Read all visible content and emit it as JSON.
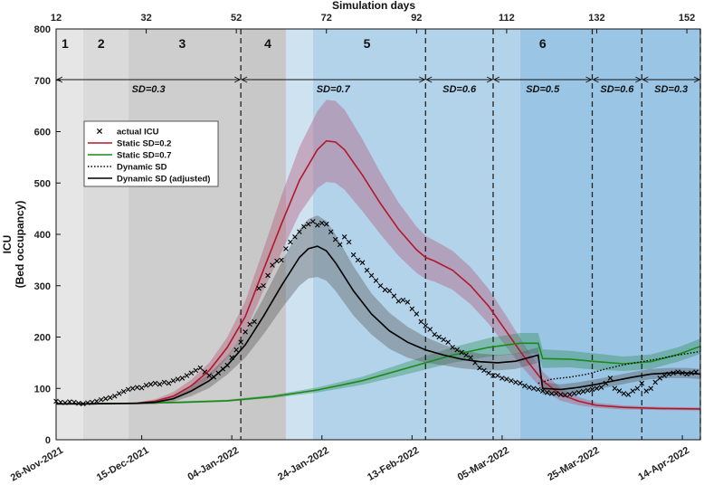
{
  "chart_data": {
    "type": "line",
    "title": "",
    "top_axis_label": "Simulation days",
    "top_ticks": [
      "12",
      "32",
      "52",
      "72",
      "92",
      "112",
      "132",
      "152"
    ],
    "top_tick_days": [
      12,
      32,
      52,
      72,
      92,
      112,
      132,
      152
    ],
    "ylabel_line1": "ICU",
    "ylabel_line2": "(Bed occupancy)",
    "ylim": [
      0,
      800
    ],
    "yticks": [
      "0",
      "100",
      "200",
      "300",
      "400",
      "500",
      "600",
      "700",
      "800"
    ],
    "xlim_days": [
      12,
      155
    ],
    "date_ticks": [
      {
        "label": "26-Nov-2021",
        "day": 12
      },
      {
        "label": "15-Dec-2021",
        "day": 31
      },
      {
        "label": "04-Jan-2022",
        "day": 51
      },
      {
        "label": "24-Jan-2022",
        "day": 71
      },
      {
        "label": "13-Feb-2022",
        "day": 91
      },
      {
        "label": "05-Mar-2022",
        "day": 111
      },
      {
        "label": "25-Mar-2022",
        "day": 131
      },
      {
        "label": "14-Apr-2022",
        "day": 151
      }
    ],
    "phase_regions": [
      {
        "start": 12,
        "end": 18,
        "color": "#e6e6e6"
      },
      {
        "start": 18,
        "end": 28,
        "color": "#dadada"
      },
      {
        "start": 28,
        "end": 53,
        "color": "#cecece"
      },
      {
        "start": 53,
        "end": 63,
        "color": "#c8c8c8"
      },
      {
        "start": 63,
        "end": 69,
        "color": "#cfe2f0"
      },
      {
        "start": 69,
        "end": 115,
        "color": "#b3d3ea"
      },
      {
        "start": 115,
        "end": 155,
        "color": "#9ac5e4"
      }
    ],
    "phases": [
      {
        "label": "1",
        "day": 14
      },
      {
        "label": "2",
        "day": 22
      },
      {
        "label": "3",
        "day": 40
      },
      {
        "label": "4",
        "day": 59
      },
      {
        "label": "5",
        "day": 81
      },
      {
        "label": "6",
        "day": 120
      }
    ],
    "dashed_lines": [
      53,
      94,
      109,
      131,
      142,
      155
    ],
    "sd_intervals": [
      {
        "label": "SD=0.3",
        "start": 12,
        "end": 53
      },
      {
        "label": "SD=0.7",
        "start": 53,
        "end": 94
      },
      {
        "label": "SD=0.6",
        "start": 94,
        "end": 109
      },
      {
        "label": "SD=0.5",
        "start": 109,
        "end": 131
      },
      {
        "label": "SD=0.6",
        "start": 131,
        "end": 142
      },
      {
        "label": "SD=0.3",
        "start": 142,
        "end": 155
      }
    ],
    "legend": [
      {
        "label": "actual ICU",
        "style": "marker",
        "color": "#000000"
      },
      {
        "label": "Static SD=0.2",
        "style": "solid",
        "color": "#b2182b"
      },
      {
        "label": "Static SD=0.7",
        "style": "solid",
        "color": "#1a8a1a"
      },
      {
        "label": "Dynamic SD",
        "style": "dotted",
        "color": "#000000"
      },
      {
        "label": "Dynamic SD (adjusted)",
        "style": "solid",
        "color": "#000000"
      }
    ],
    "series": [
      {
        "name": "Static SD=0.2",
        "color": "#b2182b",
        "band_color": "#b05070",
        "x": [
          12,
          20,
          30,
          34,
          38,
          42,
          46,
          50,
          54,
          58,
          62,
          66,
          70,
          72,
          74,
          76,
          80,
          84,
          88,
          92,
          94,
          96,
          100,
          104,
          108,
          112,
          116,
          120,
          124,
          128,
          132,
          138,
          146,
          155
        ],
        "y": [
          70,
          70,
          71,
          75,
          85,
          105,
          135,
          180,
          240,
          330,
          420,
          505,
          565,
          582,
          580,
          565,
          515,
          460,
          410,
          370,
          355,
          348,
          330,
          300,
          260,
          210,
          160,
          115,
          88,
          75,
          67,
          63,
          61,
          60
        ],
        "band": [
          0,
          0,
          2,
          4,
          8,
          12,
          15,
          20,
          30,
          40,
          55,
          65,
          75,
          80,
          80,
          78,
          70,
          60,
          52,
          45,
          42,
          40,
          38,
          36,
          34,
          30,
          24,
          18,
          12,
          8,
          5,
          4,
          3,
          3
        ]
      },
      {
        "name": "Static SD=0.7",
        "color": "#1a8a1a",
        "band_color": "#2e8b57",
        "x": [
          12,
          30,
          40,
          50,
          60,
          70,
          80,
          90,
          100,
          108,
          115,
          119,
          120,
          126,
          132,
          138,
          144,
          150,
          155
        ],
        "y": [
          70,
          71,
          73,
          76,
          84,
          97,
          115,
          140,
          165,
          180,
          188,
          188,
          158,
          157,
          152,
          148,
          152,
          166,
          182
        ],
        "band": [
          1,
          1,
          2,
          2,
          3,
          5,
          8,
          12,
          15,
          18,
          20,
          20,
          18,
          16,
          16,
          14,
          14,
          14,
          15
        ]
      },
      {
        "name": "Dynamic SD",
        "color": "#000000",
        "dotted": true,
        "x": [
          119,
          122,
          126,
          130,
          134,
          138,
          142,
          146,
          150,
          155
        ],
        "y": [
          110,
          118,
          122,
          128,
          138,
          146,
          152,
          158,
          165,
          172
        ],
        "band": []
      },
      {
        "name": "Dynamic SD (adjusted)",
        "color": "#000000",
        "band_color": "#555555",
        "x": [
          12,
          20,
          30,
          34,
          38,
          42,
          46,
          50,
          54,
          58,
          62,
          66,
          68,
          70,
          72,
          74,
          78,
          82,
          86,
          90,
          94,
          98,
          102,
          106,
          110,
          114,
          119,
          120,
          124,
          128,
          132,
          136,
          140,
          144,
          148,
          152,
          155
        ],
        "y": [
          70,
          70,
          71,
          73,
          80,
          95,
          115,
          145,
          185,
          240,
          300,
          355,
          372,
          377,
          368,
          345,
          290,
          245,
          212,
          190,
          175,
          165,
          157,
          152,
          150,
          153,
          165,
          100,
          98,
          102,
          108,
          115,
          122,
          128,
          130,
          130,
          128
        ],
        "band": [
          0,
          0,
          2,
          4,
          6,
          10,
          14,
          18,
          25,
          35,
          45,
          55,
          58,
          60,
          58,
          55,
          48,
          40,
          35,
          30,
          25,
          20,
          18,
          16,
          15,
          15,
          15,
          12,
          10,
          10,
          10,
          10,
          10,
          10,
          10,
          10,
          10
        ]
      }
    ],
    "actual_icu": {
      "x": [
        12,
        13,
        14,
        15,
        16,
        17,
        18,
        19,
        20,
        21,
        22,
        23,
        24,
        25,
        26,
        27,
        28,
        29,
        30,
        31,
        32,
        33,
        34,
        35,
        36,
        37,
        38,
        39,
        40,
        41,
        42,
        43,
        44,
        45,
        46,
        47,
        48,
        49,
        50,
        51,
        52,
        53,
        54,
        55,
        56,
        57,
        58,
        59,
        60,
        61,
        62,
        63,
        64,
        65,
        66,
        67,
        68,
        69,
        70,
        71,
        72,
        73,
        74,
        75,
        76,
        77,
        78,
        79,
        80,
        81,
        82,
        83,
        84,
        85,
        86,
        87,
        88,
        89,
        90,
        91,
        92,
        93,
        94,
        95,
        96,
        97,
        98,
        99,
        100,
        101,
        102,
        103,
        104,
        105,
        106,
        107,
        108,
        109,
        110,
        111,
        112,
        113,
        114,
        115,
        116,
        117,
        118,
        119,
        120,
        121,
        122,
        123,
        124,
        125,
        126,
        127,
        128,
        129,
        130,
        131,
        132,
        133,
        134,
        135,
        136,
        137,
        138,
        139,
        140,
        141,
        142,
        143,
        144,
        145,
        146,
        147,
        148,
        149,
        150,
        151,
        152,
        153,
        154
      ],
      "y": [
        75,
        73,
        72,
        74,
        73,
        71,
        70,
        72,
        73,
        75,
        78,
        80,
        82,
        85,
        90,
        94,
        98,
        100,
        102,
        101,
        106,
        108,
        110,
        108,
        112,
        110,
        115,
        118,
        120,
        125,
        130,
        135,
        140,
        132,
        125,
        122,
        130,
        138,
        145,
        160,
        175,
        190,
        210,
        225,
        230,
        295,
        300,
        320,
        340,
        348,
        350,
        372,
        385,
        395,
        405,
        415,
        420,
        425,
        418,
        422,
        420,
        405,
        390,
        380,
        395,
        385,
        360,
        350,
        345,
        330,
        320,
        310,
        300,
        292,
        290,
        280,
        270,
        272,
        268,
        255,
        245,
        230,
        222,
        215,
        205,
        200,
        195,
        190,
        180,
        175,
        170,
        165,
        160,
        150,
        140,
        135,
        130,
        125,
        125,
        120,
        118,
        115,
        112,
        110,
        105,
        102,
        100,
        98,
        95,
        92,
        90,
        90,
        88,
        87,
        88,
        90,
        92,
        94,
        96,
        98,
        100,
        102,
        110,
        120,
        100,
        95,
        90,
        88,
        95,
        100,
        110,
        95,
        100,
        112,
        120,
        125,
        128,
        130,
        132,
        130,
        128,
        130,
        132
      ]
    }
  }
}
